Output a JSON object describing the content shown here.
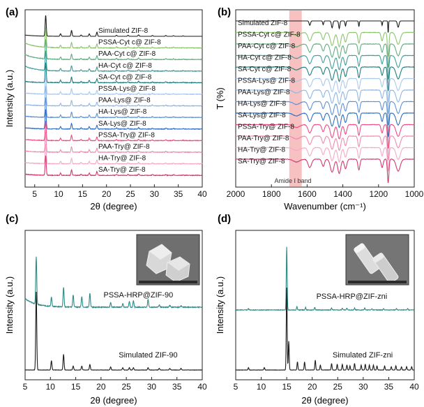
{
  "colors": {
    "black": "#1a1a1a",
    "teal": "#2a8a86",
    "light_green": "#8cc46e",
    "green": "#5fae7e",
    "sea_green": "#3f9e9c",
    "dark_teal": "#1f7f80",
    "pale_blue": "#a9c8ee",
    "light_blue": "#8db7e6",
    "mid_blue": "#5d92d8",
    "blue": "#2f6fc2",
    "pink": "#ef4b86",
    "light_pink": "#f08ab0",
    "pale_pink": "#f6a8c6",
    "magenta": "#d4386f",
    "band_fill": "#f4a6a6"
  },
  "chart_data": [
    {
      "panel": "(a)",
      "type": "line",
      "xlabel": "2θ (degree)",
      "ylabel": "Intensity (a.u.)",
      "xlim": [
        3,
        40
      ],
      "xticks": [
        5,
        10,
        15,
        20,
        25,
        30,
        35,
        40
      ],
      "grid": false,
      "peaks_2theta": [
        7.3,
        10.4,
        12.7,
        14.7,
        16.4,
        18.0,
        22.1,
        24.5,
        26.7,
        29.6,
        32.4,
        34.0,
        36.0
      ],
      "peak_relative_intensity": [
        1.0,
        0.12,
        0.28,
        0.06,
        0.12,
        0.2,
        0.05,
        0.05,
        0.07,
        0.04,
        0.04,
        0.03,
        0.02
      ],
      "series": [
        {
          "name": "Simulated ZIF-8",
          "color": "#1a1a1a"
        },
        {
          "name": "PSSA-Cyt c@ ZIF-8",
          "color": "#8cc46e"
        },
        {
          "name": "PAA-Cyt c@ ZIF-8",
          "color": "#5fae7e"
        },
        {
          "name": "HA-Cyt c@ ZIF-8",
          "color": "#3f9e9c"
        },
        {
          "name": "SA-Cyt c@ ZIF-8",
          "color": "#1f7f80"
        },
        {
          "name": "PSSA-Lys@ ZIF-8",
          "color": "#a9c8ee"
        },
        {
          "name": "PAA-Lys@ ZIF-8",
          "color": "#8db7e6"
        },
        {
          "name": "HA-Lys@ ZIF-8",
          "color": "#5d92d8"
        },
        {
          "name": "SA-Lys@ ZIF-8",
          "color": "#2f6fc2"
        },
        {
          "name": "PSSA-Try@ ZIF-8",
          "color": "#ef4b86"
        },
        {
          "name": "PAA-Try@ ZIF-8",
          "color": "#f08ab0"
        },
        {
          "name": "HA-Try@ ZIF-8",
          "color": "#f6a8c6"
        },
        {
          "name": "SA-Try@ ZIF-8",
          "color": "#d4386f"
        }
      ]
    },
    {
      "panel": "(b)",
      "type": "line",
      "xlabel": "Wavenumber (cm⁻¹)",
      "ylabel": "T (%)",
      "xlim": [
        2000,
        1000
      ],
      "xticks": [
        2000,
        1800,
        1600,
        1400,
        1200,
        1000
      ],
      "grid": false,
      "highlight_band": {
        "label": "Amide I band",
        "x_range": [
          1700,
          1630
        ]
      },
      "absorption_bands": [
        1585,
        1510,
        1460,
        1420,
        1385,
        1310,
        1180,
        1146,
        1090
      ],
      "series": [
        {
          "name": "Simulated ZIF-8",
          "color": "#1a1a1a"
        },
        {
          "name": "PSSA-Cyt c@ ZIF-8",
          "color": "#8cc46e"
        },
        {
          "name": "PAA-Cyt c@ ZIF-8",
          "color": "#5fae7e"
        },
        {
          "name": "HA-Cyt c@ ZIF-8",
          "color": "#3f9e9c"
        },
        {
          "name": "SA-Cyt c@ ZIF-8",
          "color": "#1f7f80"
        },
        {
          "name": "PSSA-Lys@ ZIF-8",
          "color": "#a9c8ee"
        },
        {
          "name": "PAA-Lys@ ZIF-8",
          "color": "#8db7e6"
        },
        {
          "name": "HA-Lys@ ZIF-8",
          "color": "#5d92d8"
        },
        {
          "name": "SA-Lys@ ZIF-8",
          "color": "#2f6fc2"
        },
        {
          "name": "PSSA-Try@ ZIF-8",
          "color": "#ef4b86"
        },
        {
          "name": "PAA-Try@ ZIF-8",
          "color": "#f08ab0"
        },
        {
          "name": "HA-Try@ ZIF-8",
          "color": "#f6a8c6"
        },
        {
          "name": "SA-Try@ ZIF-8",
          "color": "#d4386f"
        }
      ]
    },
    {
      "panel": "(c)",
      "type": "line",
      "xlabel": "2θ (degree)",
      "ylabel": "Intensity (a.u.)",
      "xlim": [
        5,
        40
      ],
      "xticks": [
        5,
        10,
        15,
        20,
        25,
        30,
        35,
        40
      ],
      "grid": false,
      "inset": "SEM image",
      "series": [
        {
          "name": "PSSA-HRP@ZIF-90",
          "color": "#2a8a86",
          "peaks_2theta": [
            7.2,
            10.2,
            12.6,
            14.5,
            16.2,
            17.8,
            21.9,
            24.3,
            25.6,
            26.4,
            29.3,
            31.5,
            33.6,
            35.8
          ],
          "peak_relative_intensity": [
            1.0,
            0.2,
            0.42,
            0.26,
            0.22,
            0.3,
            0.1,
            0.08,
            0.12,
            0.14,
            0.16,
            0.05,
            0.04,
            0.03
          ]
        },
        {
          "name": "Simulated ZIF-90",
          "color": "#1a1a1a",
          "peaks_2theta": [
            7.2,
            10.2,
            12.6,
            14.5,
            16.2,
            17.8,
            21.9,
            24.3,
            25.6,
            26.4,
            29.3,
            31.5,
            33.6,
            35.8
          ],
          "peak_relative_intensity": [
            1.0,
            0.12,
            0.2,
            0.05,
            0.05,
            0.07,
            0.04,
            0.03,
            0.03,
            0.03,
            0.03,
            0.02,
            0.02,
            0.02
          ]
        }
      ]
    },
    {
      "panel": "(d)",
      "type": "line",
      "xlabel": "2θ (degree)",
      "ylabel": "Intensity (a.u.)",
      "xlim": [
        5,
        40
      ],
      "xticks": [
        5,
        10,
        15,
        20,
        25,
        30,
        35,
        40
      ],
      "grid": false,
      "inset": "SEM image",
      "series": [
        {
          "name": "PSSA-HRP@ZIF-zni",
          "color": "#2a8a86",
          "peaks_2theta": [
            7.5,
            15.0,
            17.0,
            18.7,
            20.5,
            23.8,
            25.9,
            26.8,
            28.3,
            30.3,
            31.7,
            34.0,
            36.5,
            38.7
          ],
          "peak_relative_intensity": [
            0.02,
            1.0,
            0.05,
            0.04,
            0.04,
            0.03,
            0.03,
            0.03,
            0.03,
            0.03,
            0.02,
            0.02,
            0.02,
            0.02
          ]
        },
        {
          "name": "Simulated ZIF-zni",
          "color": "#1a1a1a",
          "peaks_2theta": [
            7.5,
            10.6,
            15.0,
            15.4,
            17.1,
            18.5,
            20.6,
            21.6,
            23.8,
            24.9,
            25.9,
            26.8,
            27.4,
            28.3,
            29.6,
            30.4,
            31.2,
            32.0,
            32.7,
            34.2,
            35.5,
            36.4,
            37.5,
            38.5,
            39.5
          ],
          "peak_relative_intensity": [
            0.03,
            0.03,
            1.0,
            0.35,
            0.1,
            0.1,
            0.12,
            0.06,
            0.08,
            0.07,
            0.07,
            0.06,
            0.05,
            0.08,
            0.06,
            0.07,
            0.06,
            0.06,
            0.05,
            0.05,
            0.04,
            0.05,
            0.04,
            0.04,
            0.04
          ]
        }
      ]
    }
  ],
  "panel_labels": [
    "(a)",
    "(b)",
    "(c)",
    "(d)"
  ]
}
